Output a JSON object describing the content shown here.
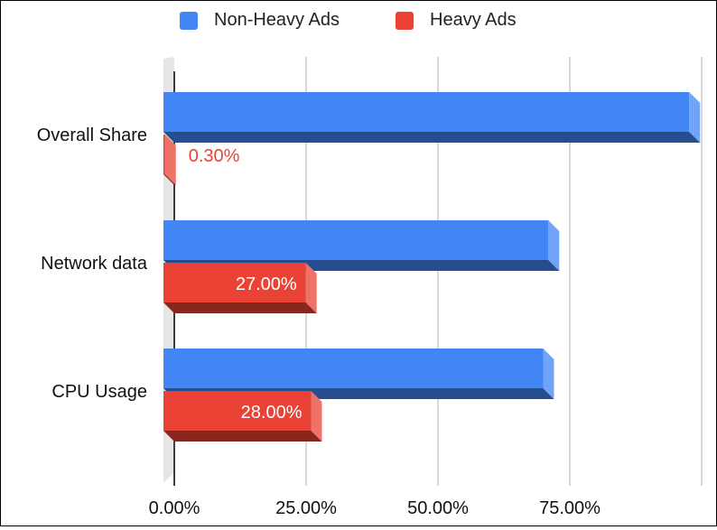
{
  "chart_data": {
    "type": "bar",
    "orientation": "horizontal",
    "style": "3d",
    "categories": [
      "Overall Share",
      "Network data",
      "CPU Usage"
    ],
    "series": [
      {
        "name": "Non-Heavy Ads",
        "values": [
          99.7,
          73.0,
          72.0
        ],
        "color": "#4285f4"
      },
      {
        "name": "Heavy Ads",
        "values": [
          0.3,
          27.0,
          28.0
        ],
        "color": "#ea4335",
        "data_labels": [
          "0.30%",
          "27.00%",
          "28.00%"
        ]
      }
    ],
    "x_ticks": [
      "0.00%",
      "25.00%",
      "50.00%",
      "75.00%"
    ],
    "xlim": [
      0,
      100
    ],
    "grid": true,
    "legend_position": "top"
  }
}
